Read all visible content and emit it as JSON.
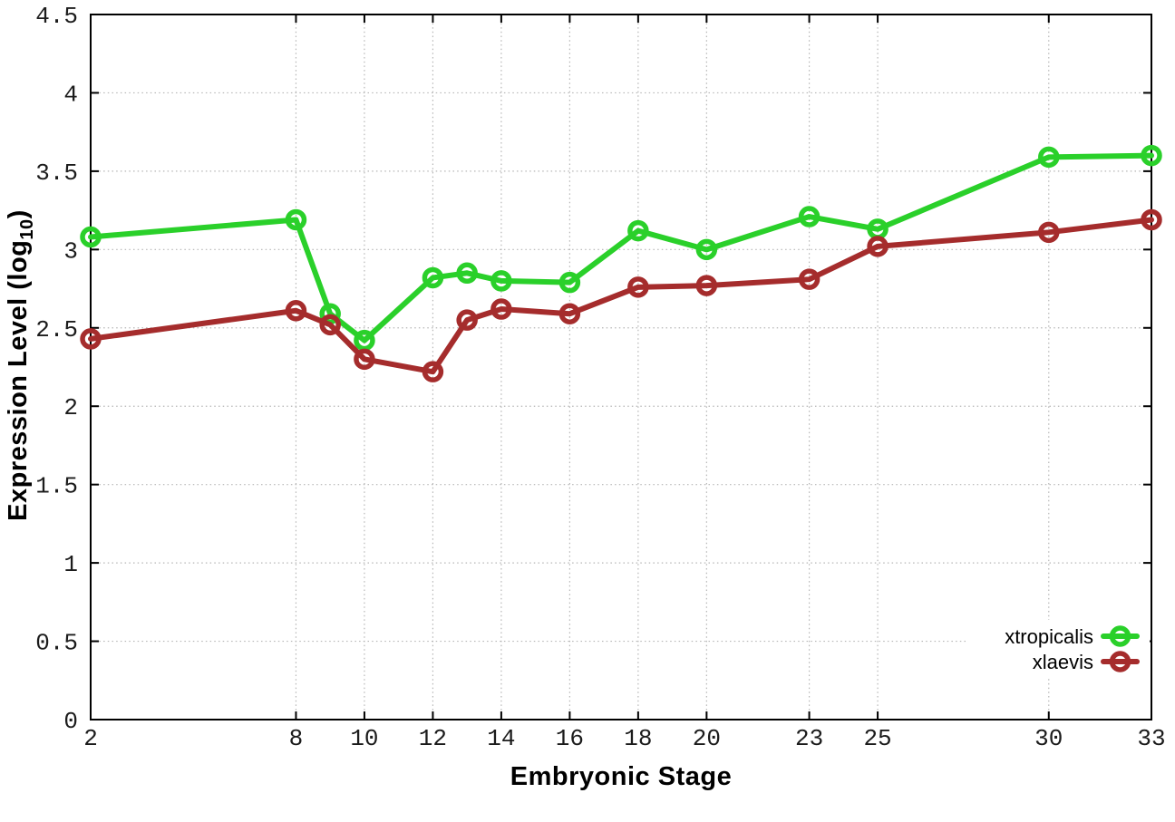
{
  "chart_data": {
    "type": "line",
    "title": "",
    "xlabel": "Embryonic Stage",
    "ylabel": "Expression Level (log10)",
    "ylabel_parts": {
      "pre": "Expression Level (log",
      "sub": "10",
      "post": ")"
    },
    "xlim": [
      2,
      33
    ],
    "ylim": [
      0,
      4.5
    ],
    "grid": true,
    "grid_color": "#b5b5b5",
    "border_color": "#000000",
    "background_color": "#ffffff",
    "legend_position": "bottom-right",
    "x_ticks": [
      2,
      8,
      10,
      12,
      14,
      16,
      18,
      20,
      23,
      25,
      30,
      33
    ],
    "x_tick_labels": [
      "2",
      "8",
      "10",
      "12",
      "14",
      "16",
      "18",
      "20",
      "23",
      "25",
      "30",
      "33"
    ],
    "y_ticks": [
      0,
      0.5,
      1,
      1.5,
      2,
      2.5,
      3,
      3.5,
      4,
      4.5
    ],
    "y_tick_labels": [
      "0",
      "0.5",
      "1",
      "1.5",
      "2",
      "2.5",
      "3",
      "3.5",
      "4",
      "4.5"
    ],
    "x": [
      2,
      8,
      9,
      10,
      12,
      13,
      14,
      16,
      18,
      20,
      23,
      25,
      30,
      33
    ],
    "series": [
      {
        "name": "xtropicalis",
        "color": "#2ad02a",
        "marker": "open-circle",
        "values": [
          3.08,
          3.19,
          2.59,
          2.42,
          2.82,
          2.85,
          2.8,
          2.79,
          3.12,
          3.0,
          3.21,
          3.13,
          3.59,
          3.6
        ]
      },
      {
        "name": "xlaevis",
        "color": "#a52c2c",
        "marker": "open-circle",
        "values": [
          2.43,
          2.61,
          2.52,
          2.3,
          2.22,
          2.55,
          2.62,
          2.59,
          2.76,
          2.77,
          2.81,
          3.02,
          3.11,
          3.19
        ]
      }
    ]
  }
}
